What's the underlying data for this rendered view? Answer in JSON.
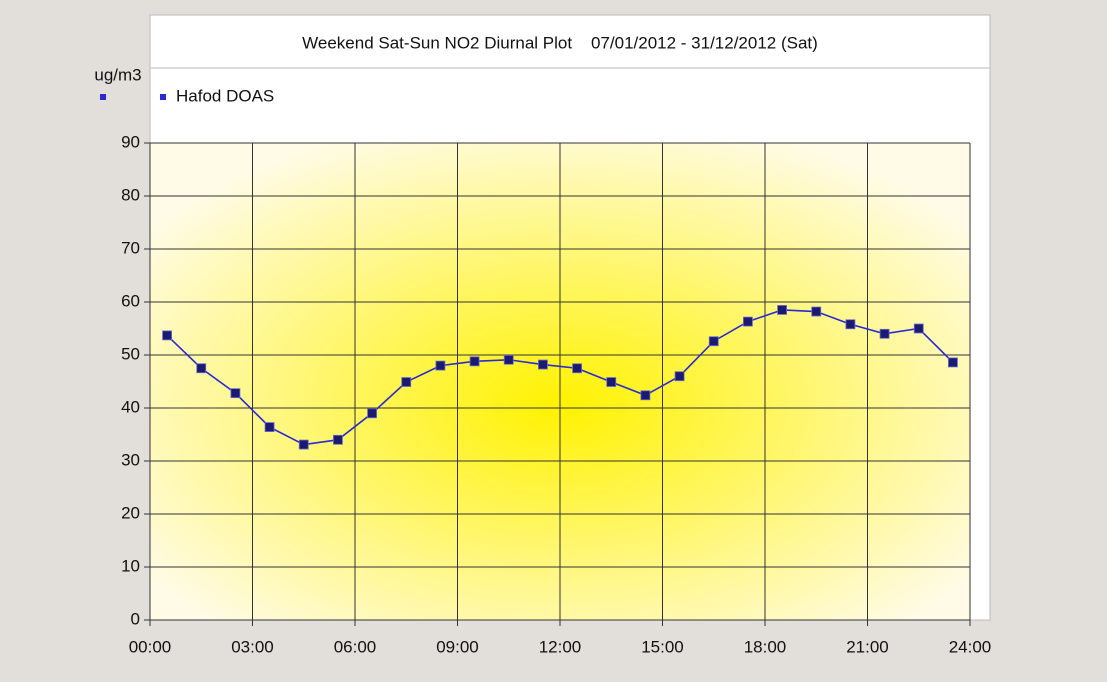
{
  "chart_data": {
    "type": "line",
    "title": "Weekend Sat-Sun NO2 Diurnal Plot    07/01/2012 - 31/12/2012 (Sat)",
    "y_label": "ug/m3",
    "x": [
      0.5,
      1.5,
      2.5,
      3.5,
      4.5,
      5.5,
      6.5,
      7.5,
      8.5,
      9.5,
      10.5,
      11.5,
      12.5,
      13.5,
      14.5,
      15.5,
      16.5,
      17.5,
      18.5,
      19.5,
      20.5,
      21.5,
      22.5,
      23.5
    ],
    "series": [
      {
        "name": "Hafod DOAS",
        "color": "#2a2ad0",
        "marker_color": "#1a1a70",
        "values": [
          53.7,
          47.5,
          42.8,
          36.4,
          33.1,
          34.0,
          39.0,
          44.9,
          48.0,
          48.8,
          49.1,
          48.2,
          47.5,
          44.9,
          42.4,
          46.0,
          52.6,
          56.3,
          58.5,
          58.2,
          55.8,
          54.0,
          55.0,
          48.6
        ]
      }
    ],
    "xlim": [
      0,
      24
    ],
    "xticks": [
      {
        "value": 0,
        "label": "00:00"
      },
      {
        "value": 3,
        "label": "03:00"
      },
      {
        "value": 6,
        "label": "06:00"
      },
      {
        "value": 9,
        "label": "09:00"
      },
      {
        "value": 12,
        "label": "12:00"
      },
      {
        "value": 15,
        "label": "15:00"
      },
      {
        "value": 18,
        "label": "18:00"
      },
      {
        "value": 21,
        "label": "21:00"
      },
      {
        "value": 24,
        "label": "24:00"
      }
    ],
    "ylim": [
      0,
      90
    ],
    "yticks": [
      0,
      10,
      20,
      30,
      40,
      50,
      60,
      70,
      80,
      90
    ],
    "grid": true
  }
}
